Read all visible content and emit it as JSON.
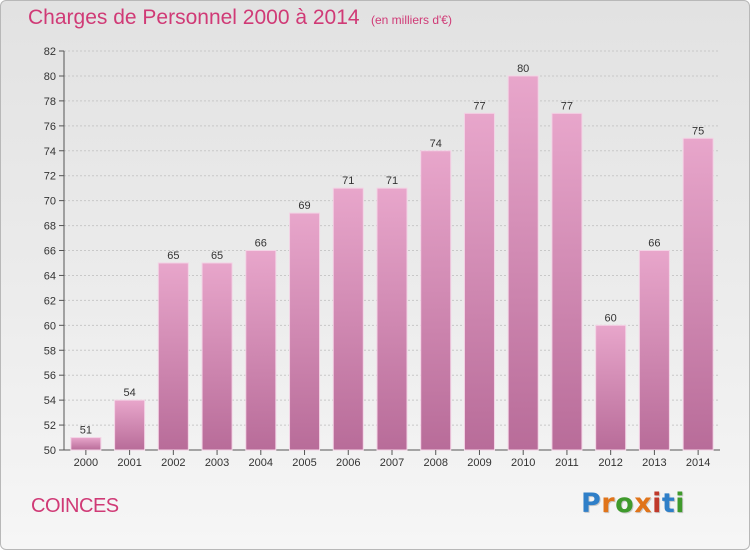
{
  "header": {
    "title": "Charges de Personnel 2000 à 2014",
    "subtitle": "(en milliers d'€)"
  },
  "footer": {
    "place": "COINCES",
    "logo_text": "Proxiti"
  },
  "colors": {
    "accent": "#d03a76",
    "bar_top": "#e8a6cb",
    "bar_bottom": "#b86c99",
    "logo_letters": [
      "#2f7fc8",
      "#e0741a",
      "#3f9a2c",
      "#e0741a",
      "#c0392b",
      "#2f7fc8",
      "#3f9a2c"
    ]
  },
  "chart_data": {
    "type": "bar",
    "categories": [
      "2000",
      "2001",
      "2002",
      "2003",
      "2004",
      "2005",
      "2006",
      "2007",
      "2008",
      "2009",
      "2010",
      "2011",
      "2012",
      "2013",
      "2014"
    ],
    "values": [
      51,
      54,
      65,
      65,
      66,
      69,
      71,
      71,
      74,
      77,
      80,
      77,
      60,
      66,
      75
    ],
    "title": "Charges de Personnel 2000 à 2014",
    "xlabel": "",
    "ylabel": "",
    "ylim": [
      50,
      82
    ],
    "yticks": [
      50,
      52,
      54,
      56,
      58,
      60,
      62,
      64,
      66,
      68,
      70,
      72,
      74,
      76,
      78,
      80,
      82
    ],
    "grid": true,
    "legend": "none"
  }
}
